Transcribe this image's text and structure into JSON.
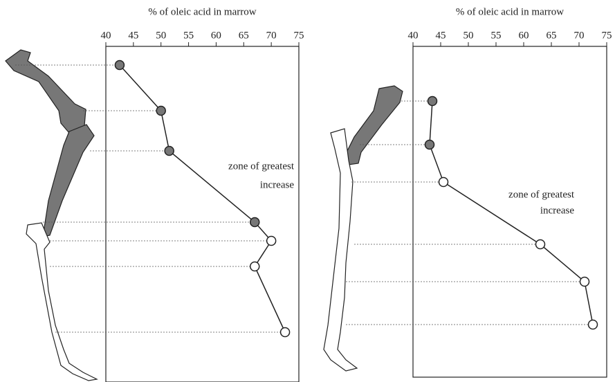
{
  "chart_data": [
    {
      "type": "dot-line",
      "title": "% of oleic acid in marrow",
      "categories": [
        null,
        null,
        null,
        null,
        null,
        null,
        null
      ],
      "values": [
        42.5,
        50,
        51.5,
        67,
        70,
        67,
        72.5
      ],
      "point_colors": [
        "#777777",
        "#777777",
        "#777777",
        "#777777",
        "#ffffff",
        "#ffffff",
        "#ffffff"
      ],
      "xlim": [
        40,
        75
      ],
      "xticks": [
        40,
        45,
        50,
        55,
        60,
        65,
        70,
        75
      ],
      "annotations": [
        "zone of greatest",
        "increase"
      ]
    },
    {
      "type": "dot-line",
      "title": "% of oleic acid in marrow",
      "categories": [
        null,
        null,
        null,
        null,
        null,
        null
      ],
      "values": [
        43.5,
        43,
        45.5,
        63,
        71,
        72.5
      ],
      "point_colors": [
        "#777777",
        "#777777",
        "#ffffff",
        "#ffffff",
        "#ffffff",
        "#ffffff"
      ],
      "xlim": [
        40,
        75
      ],
      "xticks": [
        40,
        45,
        50,
        55,
        60,
        65,
        70,
        75
      ],
      "annotations": [
        "zone of greatest",
        "increase"
      ]
    }
  ]
}
